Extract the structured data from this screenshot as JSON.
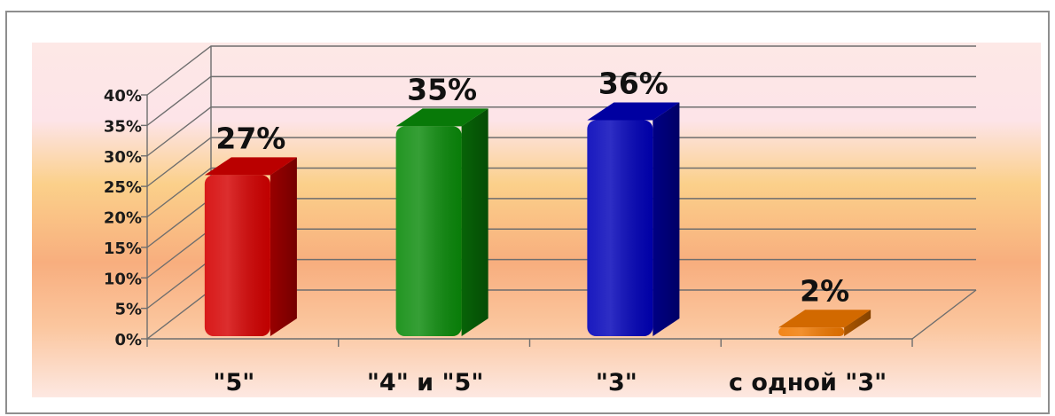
{
  "chart_data": {
    "type": "bar",
    "categories": [
      "\"5\"",
      "\"4\" и \"5\"",
      "\"3\"",
      "с одной \"3\""
    ],
    "values": [
      27,
      35,
      36,
      2
    ],
    "data_labels": [
      "27%",
      "35%",
      "36%",
      "2%"
    ],
    "y_ticks": [
      "0%",
      "5%",
      "10%",
      "15%",
      "20%",
      "25%",
      "30%",
      "35%",
      "40%"
    ],
    "ylim": [
      0,
      40
    ],
    "y_step": 5,
    "grid": true,
    "style": "3d-column",
    "colors": {
      "bars": [
        "#d40000",
        "#0a8a0a",
        "#0000b8",
        "#f07800"
      ],
      "background_top": "#fde6e6",
      "background_mid": "#f9c77c",
      "background_band": "#f7a87a"
    }
  }
}
